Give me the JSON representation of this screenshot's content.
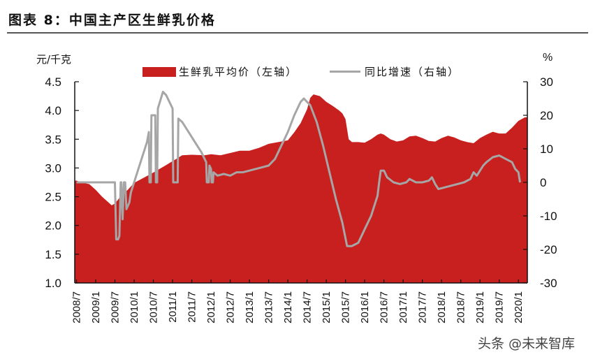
{
  "figure": {
    "title": "图表 8：中国主产区生鲜乳价格",
    "left_unit": "元/千克",
    "right_unit": "%",
    "watermark": "头条 @未来智库"
  },
  "legend": {
    "area_label": "生鲜乳平均价（左轴）",
    "line_label": "同比增速（右轴）"
  },
  "colors": {
    "area": "#c8201f",
    "line": "#a6a6a6",
    "axis": "#111111"
  },
  "chart_data": {
    "type": "area+line",
    "title": "图表 8：中国主产区生鲜乳价格",
    "xlabel": "",
    "ylabel_left": "元/千克",
    "ylabel_right": "%",
    "ylim_left": [
      1.0,
      4.5
    ],
    "ylim_right": [
      -30,
      30
    ],
    "yticks_left": [
      "4.5",
      "4.0",
      "3.5",
      "3.0",
      "2.5",
      "2.0",
      "1.5",
      "1.0"
    ],
    "yticks_right": [
      "30",
      "20",
      "10",
      "0",
      "-10",
      "-20",
      "-30"
    ],
    "x_tick_labels": [
      "2008/7",
      "2009/1",
      "2009/7",
      "2010/1",
      "2010/7",
      "2011/1",
      "2011/7",
      "2012/1",
      "2012/7",
      "2013/1",
      "2013/7",
      "2014/1",
      "2014/7",
      "2015/1",
      "2015/7",
      "2016/1",
      "2016/7",
      "2017/1",
      "2017/7",
      "2018/1",
      "2018/7",
      "2019/1",
      "2019/7",
      "2020/1"
    ],
    "legend_position": "top",
    "grid": false,
    "start_month": "2008/7",
    "series": [
      {
        "name": "生鲜乳平均价（左轴）",
        "axis": "left",
        "type": "area",
        "keypoints_month_index_value": [
          [
            0,
            2.78
          ],
          [
            2,
            2.74
          ],
          [
            4,
            2.72
          ],
          [
            6,
            2.62
          ],
          [
            8,
            2.5
          ],
          [
            10,
            2.4
          ],
          [
            11,
            2.35
          ],
          [
            12,
            2.38
          ],
          [
            14,
            2.52
          ],
          [
            16,
            2.62
          ],
          [
            18,
            2.74
          ],
          [
            20,
            2.8
          ],
          [
            24,
            2.92
          ],
          [
            28,
            3.05
          ],
          [
            30,
            3.12
          ],
          [
            33,
            3.22
          ],
          [
            36,
            3.23
          ],
          [
            40,
            3.22
          ],
          [
            42,
            3.24
          ],
          [
            45,
            3.22
          ],
          [
            48,
            3.26
          ],
          [
            51,
            3.3
          ],
          [
            54,
            3.3
          ],
          [
            57,
            3.35
          ],
          [
            60,
            3.42
          ],
          [
            63,
            3.45
          ],
          [
            66,
            3.48
          ],
          [
            68,
            3.62
          ],
          [
            70,
            3.78
          ],
          [
            72,
            4.02
          ],
          [
            73,
            4.22
          ],
          [
            74,
            4.28
          ],
          [
            76,
            4.25
          ],
          [
            78,
            4.15
          ],
          [
            80,
            4.08
          ],
          [
            82,
            4.0
          ],
          [
            83,
            3.95
          ],
          [
            84,
            3.85
          ],
          [
            85,
            3.5
          ],
          [
            86,
            3.45
          ],
          [
            88,
            3.45
          ],
          [
            90,
            3.44
          ],
          [
            92,
            3.5
          ],
          [
            94,
            3.58
          ],
          [
            95,
            3.6
          ],
          [
            96,
            3.58
          ],
          [
            98,
            3.5
          ],
          [
            100,
            3.46
          ],
          [
            102,
            3.48
          ],
          [
            104,
            3.55
          ],
          [
            106,
            3.56
          ],
          [
            108,
            3.52
          ],
          [
            110,
            3.47
          ],
          [
            112,
            3.46
          ],
          [
            114,
            3.52
          ],
          [
            116,
            3.56
          ],
          [
            118,
            3.53
          ],
          [
            120,
            3.48
          ],
          [
            122,
            3.45
          ],
          [
            124,
            3.43
          ],
          [
            126,
            3.52
          ],
          [
            128,
            3.58
          ],
          [
            130,
            3.63
          ],
          [
            132,
            3.6
          ],
          [
            134,
            3.6
          ],
          [
            136,
            3.7
          ],
          [
            138,
            3.82
          ],
          [
            140,
            3.88
          ],
          [
            142,
            3.88
          ],
          [
            143,
            3.84
          ]
        ]
      },
      {
        "name": "同比增速（右轴）",
        "axis": "right",
        "type": "line",
        "keypoints_month_index_value": [
          [
            0,
            0
          ],
          [
            12,
            0
          ],
          [
            12.4,
            -17
          ],
          [
            13,
            -17
          ],
          [
            13.4,
            -16
          ],
          [
            13.8,
            0
          ],
          [
            14,
            0
          ],
          [
            14.4,
            -11
          ],
          [
            14.8,
            0
          ],
          [
            15.2,
            0
          ],
          [
            15.6,
            -8
          ],
          [
            16.5,
            -6
          ],
          [
            17,
            -3
          ],
          [
            18,
            0
          ],
          [
            19,
            3
          ],
          [
            20,
            6
          ],
          [
            21,
            9
          ],
          [
            22,
            12
          ],
          [
            22.6,
            15
          ],
          [
            22.8,
            0
          ],
          [
            23.2,
            0
          ],
          [
            23.4,
            20
          ],
          [
            24.6,
            20
          ],
          [
            24.8,
            0
          ],
          [
            25.2,
            0
          ],
          [
            25.4,
            22
          ],
          [
            27,
            27
          ],
          [
            28,
            26
          ],
          [
            30,
            22
          ],
          [
            30.2,
            0
          ],
          [
            31.6,
            0
          ],
          [
            31.8,
            19
          ],
          [
            33,
            18
          ],
          [
            35,
            15
          ],
          [
            37,
            12
          ],
          [
            39,
            9
          ],
          [
            40.5,
            6
          ],
          [
            40.7,
            0
          ],
          [
            41.3,
            0
          ],
          [
            41.5,
            5
          ],
          [
            42,
            4
          ],
          [
            42.2,
            0
          ],
          [
            42.6,
            0
          ],
          [
            42.8,
            3
          ],
          [
            44,
            2
          ],
          [
            46,
            2.5
          ],
          [
            48,
            2
          ],
          [
            50,
            3
          ],
          [
            52,
            3
          ],
          [
            54,
            3.5
          ],
          [
            56,
            4
          ],
          [
            58,
            4.5
          ],
          [
            60,
            5
          ],
          [
            62,
            7
          ],
          [
            64,
            11
          ],
          [
            66,
            15
          ],
          [
            68,
            20
          ],
          [
            70,
            24
          ],
          [
            71,
            25
          ],
          [
            72,
            24
          ],
          [
            73,
            23
          ],
          [
            75,
            18
          ],
          [
            77,
            11
          ],
          [
            79,
            3
          ],
          [
            81,
            -5
          ],
          [
            83,
            -12
          ],
          [
            84.5,
            -19
          ],
          [
            86,
            -19
          ],
          [
            88,
            -18
          ],
          [
            90,
            -14
          ],
          [
            92,
            -10
          ],
          [
            93,
            -7
          ],
          [
            94,
            -4
          ],
          [
            94.5,
            0
          ],
          [
            95,
            3.5
          ],
          [
            96,
            3.5
          ],
          [
            97,
            1.5
          ],
          [
            99,
            0
          ],
          [
            101,
            -0.5
          ],
          [
            103,
            0
          ],
          [
            104,
            1
          ],
          [
            106,
            0
          ],
          [
            108,
            0
          ],
          [
            110,
            0.5
          ],
          [
            111,
            1.5
          ],
          [
            112,
            -0.5
          ],
          [
            113,
            -2
          ],
          [
            115,
            -1.5
          ],
          [
            117,
            -1
          ],
          [
            119,
            -0.5
          ],
          [
            121,
            0
          ],
          [
            123,
            1
          ],
          [
            124,
            3
          ],
          [
            125,
            2
          ],
          [
            127,
            5
          ],
          [
            128,
            6
          ],
          [
            130,
            7.5
          ],
          [
            132,
            8
          ],
          [
            134,
            7
          ],
          [
            136,
            6
          ],
          [
            137,
            4
          ],
          [
            138,
            3
          ],
          [
            138.5,
            0
          ]
        ]
      }
    ]
  }
}
